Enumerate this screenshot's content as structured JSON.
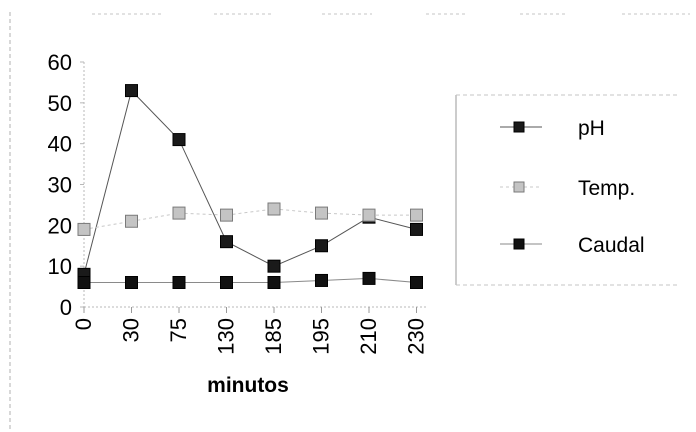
{
  "chart_data": {
    "type": "line",
    "title": "",
    "xlabel": "minutos",
    "ylabel": "",
    "ylim": [
      0,
      60
    ],
    "yticks": [
      0,
      10,
      20,
      30,
      40,
      50,
      60
    ],
    "categories": [
      "0",
      "30",
      "75",
      "130",
      "185",
      "195",
      "210",
      "230"
    ],
    "grid": false,
    "legend_position": "right",
    "series": [
      {
        "name": "pH",
        "color": "#1a1a1a",
        "marker": "square",
        "values": [
          8,
          53,
          41,
          16,
          10,
          15,
          22,
          19
        ]
      },
      {
        "name": "Temp.",
        "color": "#9a9a9a",
        "marker": "square",
        "values": [
          19,
          21,
          23,
          22.5,
          24,
          23,
          22.5,
          22.5
        ]
      },
      {
        "name": "Caudal",
        "color": "#111111",
        "marker": "square",
        "values": [
          6,
          6,
          6,
          6,
          6,
          6.5,
          7,
          6
        ]
      }
    ]
  }
}
